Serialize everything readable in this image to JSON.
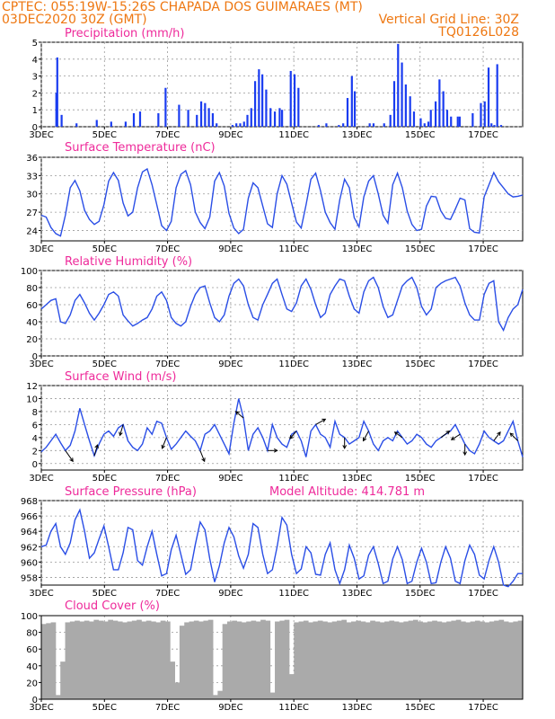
{
  "header": {
    "line1_left": "CPTEC:   055:19W-15:26S   CHAPADA DOS GUIMARAES (MT)",
    "line2_left": "03DEC2020 30Z (GMT)",
    "line2_right": "Vertical Grid Line: 30Z",
    "line3_right": "TQ0126L028"
  },
  "colors": {
    "header": "#ee7711",
    "panel_title": "#ee2a9a",
    "series": "#2a4ee6",
    "precip_bar": "#1a3cf0",
    "cloud_fill": "#aaaaaa",
    "wind_arrow": "#000000"
  },
  "x_axis": {
    "days": [
      "3DEC",
      "5DEC",
      "7DEC",
      "9DEC",
      "11DEC",
      "13DEC",
      "15DEC",
      "17DEC"
    ],
    "range_hours_from_3DEC": [
      0,
      366
    ]
  },
  "chart_data": [
    {
      "type": "bar",
      "name": "precipitation",
      "title": "Precipitation (mm/h)",
      "ylim": [
        0,
        5
      ],
      "yticks": [
        "0",
        "1",
        "2",
        "3",
        "4",
        "5"
      ],
      "values": [
        [
          3.1,
          2.0
        ],
        [
          3.3,
          4.1
        ],
        [
          4.2,
          0.7
        ],
        [
          7.3,
          0.2
        ],
        [
          11.5,
          0.4
        ],
        [
          14.5,
          0.3
        ],
        [
          17.5,
          0.3
        ],
        [
          19.2,
          0.8
        ],
        [
          20.5,
          0.9
        ],
        [
          24.3,
          0.8
        ],
        [
          25.8,
          2.3
        ],
        [
          28.6,
          1.3
        ],
        [
          30.5,
          1.0
        ],
        [
          32.3,
          0.7
        ],
        [
          33.2,
          1.5
        ],
        [
          34,
          1.4
        ],
        [
          34.8,
          1.1
        ],
        [
          35.6,
          0.8
        ],
        [
          36.4,
          0.2
        ],
        [
          39.7,
          0.1
        ],
        [
          40.5,
          0.2
        ],
        [
          41.3,
          0.2
        ],
        [
          42.1,
          0.3
        ],
        [
          42.8,
          0.7
        ],
        [
          43.6,
          1.1
        ],
        [
          44.4,
          2.7
        ],
        [
          45.2,
          3.4
        ],
        [
          45.9,
          3.1
        ],
        [
          46.7,
          2.2
        ],
        [
          47.6,
          1.1
        ],
        [
          48.5,
          0.9
        ],
        [
          49.5,
          1.1
        ],
        [
          50,
          1.0
        ],
        [
          51.8,
          3.3
        ],
        [
          52.6,
          3.1
        ],
        [
          53.4,
          2.3
        ],
        [
          57.6,
          0.1
        ],
        [
          59.2,
          0.2
        ],
        [
          61.8,
          0.1
        ],
        [
          62.7,
          0.2
        ],
        [
          63.6,
          1.7
        ],
        [
          64.5,
          3.0
        ],
        [
          65.1,
          2.1
        ],
        [
          68.2,
          0.2
        ],
        [
          69,
          0.2
        ],
        [
          71.2,
          0.2
        ],
        [
          72.5,
          0.7
        ],
        [
          73.3,
          2.7
        ],
        [
          74.1,
          4.9
        ],
        [
          74.9,
          3.8
        ],
        [
          75.7,
          2.5
        ],
        [
          76.6,
          1.8
        ],
        [
          77.4,
          0.9
        ],
        [
          78.8,
          0.5
        ],
        [
          79.6,
          0.2
        ],
        [
          80.4,
          0.3
        ],
        [
          80.9,
          1.0
        ],
        [
          81.9,
          1.5
        ],
        [
          82.7,
          2.8
        ],
        [
          83.5,
          2.1
        ],
        [
          84.3,
          1.0
        ],
        [
          85.1,
          0.6
        ],
        [
          86.5,
          0.6
        ],
        [
          86.9,
          0.6
        ],
        [
          89.6,
          0.8
        ],
        [
          91.3,
          1.4
        ],
        [
          92.1,
          1.5
        ],
        [
          92.9,
          3.5
        ],
        [
          93.5,
          0.2
        ],
        [
          94.1,
          0.1
        ],
        [
          94.7,
          3.7
        ],
        [
          95.5,
          0.1
        ]
      ]
    },
    {
      "type": "line",
      "name": "surface_temperature",
      "title": "Surface Temperature (nC)",
      "ylim": [
        22.3,
        36
      ],
      "yticks": [
        "24",
        "27",
        "30",
        "33",
        "36"
      ],
      "x": [
        0,
        1,
        2,
        3,
        4,
        5,
        6,
        7,
        8,
        9,
        10,
        11,
        12,
        13,
        14,
        15,
        16,
        17,
        18,
        19,
        20,
        21,
        22,
        23,
        24,
        25,
        26,
        27,
        28,
        29,
        30,
        31,
        32,
        33,
        34,
        35,
        36,
        37,
        38,
        39,
        40,
        41,
        42,
        43,
        44,
        45,
        46,
        47,
        48,
        49,
        50,
        51,
        52,
        53,
        54,
        55,
        56,
        57,
        58,
        59,
        60,
        61,
        62,
        63,
        64,
        65,
        66,
        67,
        68,
        69,
        70,
        71,
        72,
        73,
        74,
        75,
        76,
        77,
        78,
        79,
        80,
        81,
        82,
        83,
        84,
        85,
        86,
        87,
        88,
        89,
        90,
        91,
        92,
        93,
        94,
        95,
        96,
        97,
        98,
        99,
        100
      ],
      "values": [
        26.5,
        26.2,
        24.5,
        23.5,
        23.1,
        26.5,
        31.0,
        32.2,
        30.5,
        27.3,
        25.8,
        25.0,
        25.5,
        28.2,
        32.1,
        33.5,
        32.2,
        28.5,
        26.4,
        27.0,
        31.0,
        33.6,
        34.1,
        31.5,
        28.2,
        24.8,
        24.0,
        25.5,
        31.0,
        33.2,
        33.8,
        31.5,
        27.0,
        25.3,
        24.3,
        26.2,
        32.1,
        33.5,
        31.3,
        26.8,
        24.4,
        23.5,
        24.2,
        29.3,
        31.8,
        31.0,
        28.0,
        25.1,
        24.5,
        30.0,
        33.0,
        31.6,
        28.5,
        25.4,
        24.4,
        28.2,
        32.4,
        33.4,
        30.5,
        27.0,
        25.3,
        24.2,
        29.0,
        32.4,
        31.0,
        26.1,
        24.6,
        29.5,
        32.1,
        33.0,
        30.0,
        26.5,
        25.2,
        31.5,
        33.4,
        31.0,
        27.2,
        25.0,
        24.0,
        24.2,
        28.0,
        29.6,
        29.5,
        27.2,
        26.0,
        25.8,
        27.5,
        29.3,
        29.0,
        24.3,
        23.7,
        23.6,
        29.5,
        31.5,
        33.5,
        32.0,
        31.0,
        30.0,
        29.5,
        29.6,
        29.8
      ]
    },
    {
      "type": "line",
      "name": "relative_humidity",
      "title": "Relative Humidity (%)",
      "ylim": [
        0,
        100
      ],
      "yticks": [
        "0",
        "20",
        "40",
        "60",
        "80",
        "100"
      ],
      "x": [
        0,
        1,
        2,
        3,
        4,
        5,
        6,
        7,
        8,
        9,
        10,
        11,
        12,
        13,
        14,
        15,
        16,
        17,
        18,
        19,
        20,
        21,
        22,
        23,
        24,
        25,
        26,
        27,
        28,
        29,
        30,
        31,
        32,
        33,
        34,
        35,
        36,
        37,
        38,
        39,
        40,
        41,
        42,
        43,
        44,
        45,
        46,
        47,
        48,
        49,
        50,
        51,
        52,
        53,
        54,
        55,
        56,
        57,
        58,
        59,
        60,
        61,
        62,
        63,
        64,
        65,
        66,
        67,
        68,
        69,
        70,
        71,
        72,
        73,
        74,
        75,
        76,
        77,
        78,
        79,
        80,
        81,
        82,
        83,
        84,
        85,
        86,
        87,
        88,
        89,
        90,
        91,
        92,
        93,
        94,
        95,
        96,
        97,
        98,
        99,
        100
      ],
      "values": [
        55,
        60,
        65,
        67,
        40,
        38,
        48,
        65,
        72,
        62,
        50,
        42,
        50,
        60,
        72,
        75,
        70,
        48,
        41,
        35,
        38,
        42,
        45,
        55,
        70,
        75,
        65,
        45,
        38,
        35,
        40,
        58,
        72,
        80,
        82,
        62,
        45,
        40,
        48,
        70,
        85,
        90,
        82,
        60,
        45,
        42,
        60,
        72,
        85,
        90,
        72,
        55,
        52,
        62,
        82,
        90,
        78,
        60,
        45,
        50,
        72,
        82,
        90,
        88,
        70,
        55,
        50,
        75,
        88,
        92,
        80,
        58,
        45,
        48,
        65,
        82,
        88,
        92,
        80,
        58,
        48,
        55,
        80,
        85,
        88,
        90,
        92,
        82,
        62,
        48,
        42,
        42,
        72,
        85,
        88,
        40,
        30,
        45,
        55,
        60,
        78
      ]
    },
    {
      "type": "line",
      "name": "surface_wind",
      "title": "Surface Wind (m/s)",
      "ylim": [
        -1,
        12
      ],
      "yticks": [
        "0",
        "2",
        "4",
        "6",
        "8",
        "10",
        "12"
      ],
      "x": [
        0,
        1,
        2,
        3,
        4,
        5,
        6,
        7,
        8,
        9,
        10,
        11,
        12,
        13,
        14,
        15,
        16,
        17,
        18,
        19,
        20,
        21,
        22,
        23,
        24,
        25,
        26,
        27,
        28,
        29,
        30,
        31,
        32,
        33,
        34,
        35,
        36,
        37,
        38,
        39,
        40,
        41,
        42,
        43,
        44,
        45,
        46,
        47,
        48,
        49,
        50,
        51,
        52,
        53,
        54,
        55,
        56,
        57,
        58,
        59,
        60,
        61,
        62,
        63,
        64,
        65,
        66,
        67,
        68,
        69,
        70,
        71,
        72,
        73,
        74,
        75,
        76,
        77,
        78,
        79,
        80,
        81,
        82,
        83,
        84,
        85,
        86,
        87,
        88,
        89,
        90,
        91,
        92,
        93,
        94,
        95,
        96,
        97,
        98,
        99,
        100
      ],
      "values": [
        1.8,
        2.5,
        3.5,
        4.5,
        3.2,
        2.0,
        2.8,
        5.0,
        8.5,
        6.0,
        3.5,
        1.2,
        3.0,
        4.5,
        5.0,
        4.2,
        5.5,
        6.0,
        3.5,
        2.5,
        2.0,
        3.0,
        5.5,
        4.5,
        6.5,
        6.2,
        4.0,
        2.2,
        3.0,
        4.0,
        5.0,
        4.2,
        3.5,
        2.0,
        4.5,
        5.0,
        6.0,
        4.5,
        3.0,
        1.5,
        6.2,
        10.0,
        7.0,
        2.0,
        4.5,
        5.5,
        4.0,
        2.0,
        6.0,
        4.0,
        3.0,
        2.5,
        4.5,
        5.0,
        3.5,
        1.0,
        5.0,
        6.0,
        4.5,
        4.0,
        2.5,
        6.5,
        4.5,
        4.0,
        3.0,
        3.5,
        4.0,
        6.5,
        5.0,
        3.0,
        2.0,
        3.5,
        4.0,
        3.5,
        5.0,
        4.0,
        3.0,
        3.5,
        4.5,
        4.0,
        3.0,
        2.5,
        3.5,
        4.0,
        4.5,
        5.0,
        6.0,
        4.5,
        3.0,
        2.0,
        1.5,
        3.0,
        5.0,
        4.0,
        3.5,
        3.0,
        3.5,
        5.0,
        6.5,
        3.5,
        1.0
      ],
      "arrows": [
        [
          5,
          0.7,
          1.0
        ],
        [
          11,
          0.3,
          -1.0
        ],
        [
          17,
          -0.3,
          1.0
        ],
        [
          26,
          -0.4,
          1.0
        ],
        [
          33,
          0.4,
          1.0
        ],
        [
          42,
          -0.7,
          -0.6
        ],
        [
          47,
          0.9,
          0.0
        ],
        [
          53,
          -0.6,
          0.7
        ],
        [
          57,
          0.9,
          -0.5
        ],
        [
          63,
          0.0,
          1.0
        ],
        [
          68,
          -0.5,
          0.9
        ],
        [
          75,
          -0.7,
          -0.5
        ],
        [
          83,
          0.8,
          -0.6
        ],
        [
          87,
          -0.8,
          0.5
        ],
        [
          88,
          0.0,
          1.0
        ],
        [
          94,
          0.6,
          -0.8
        ],
        [
          99,
          -0.7,
          -0.7
        ]
      ]
    },
    {
      "type": "line",
      "name": "surface_pressure",
      "title": "Surface Pressure (hPa)",
      "annotation": "Model Altitude:  414.781  m",
      "ylim": [
        957,
        968
      ],
      "yticks": [
        "958",
        "960",
        "962",
        "964",
        "966",
        "968"
      ],
      "x": [
        0,
        1,
        2,
        3,
        4,
        5,
        6,
        7,
        8,
        9,
        10,
        11,
        12,
        13,
        14,
        15,
        16,
        17,
        18,
        19,
        20,
        21,
        22,
        23,
        24,
        25,
        26,
        27,
        28,
        29,
        30,
        31,
        32,
        33,
        34,
        35,
        36,
        37,
        38,
        39,
        40,
        41,
        42,
        43,
        44,
        45,
        46,
        47,
        48,
        49,
        50,
        51,
        52,
        53,
        54,
        55,
        56,
        57,
        58,
        59,
        60,
        61,
        62,
        63,
        64,
        65,
        66,
        67,
        68,
        69,
        70,
        71,
        72,
        73,
        74,
        75,
        76,
        77,
        78,
        79,
        80,
        81,
        82,
        83,
        84,
        85,
        86,
        87,
        88,
        89,
        90,
        91,
        92,
        93,
        94,
        95,
        96,
        97,
        98,
        99,
        100
      ],
      "values": [
        962.0,
        962.2,
        964.0,
        965.0,
        962.0,
        961.0,
        962.5,
        965.5,
        966.8,
        964.0,
        960.5,
        961.2,
        963.0,
        964.7,
        962.0,
        959.0,
        959.0,
        961.2,
        964.5,
        964.2,
        960.2,
        959.6,
        962.0,
        964.0,
        961.0,
        958.2,
        958.5,
        961.6,
        963.5,
        961.0,
        958.4,
        959.0,
        962.3,
        965.2,
        964.2,
        960.4,
        957.4,
        959.5,
        962.5,
        964.5,
        963.3,
        960.8,
        959.2,
        961.0,
        965.0,
        964.5,
        961.0,
        958.5,
        959.0,
        962.0,
        965.8,
        964.8,
        961.0,
        958.5,
        959.1,
        962.0,
        961.2,
        958.4,
        958.3,
        961.0,
        962.5,
        959.0,
        957.2,
        959.0,
        962.2,
        960.5,
        957.8,
        958.2,
        960.9,
        962.0,
        959.8,
        957.2,
        957.5,
        960.4,
        962.0,
        960.3,
        957.2,
        957.5,
        960.0,
        961.8,
        960.0,
        957.2,
        957.3,
        960.0,
        962.0,
        960.5,
        957.5,
        957.2,
        960.2,
        962.2,
        961.0,
        958.3,
        957.8,
        960.2,
        962.0,
        960.0,
        957.0,
        956.8,
        957.5,
        958.5,
        958.5
      ]
    },
    {
      "type": "area",
      "name": "cloud_cover",
      "title": "Cloud Cover (%)",
      "ylim": [
        0,
        100
      ],
      "yticks": [
        "0",
        "20",
        "40",
        "60",
        "80",
        "100"
      ],
      "values": [
        90,
        91,
        92,
        5,
        45,
        92,
        93,
        94,
        93,
        94,
        93,
        95,
        94,
        93,
        95,
        94,
        93,
        92,
        93,
        94,
        95,
        93,
        94,
        93,
        92,
        94,
        93,
        45,
        20,
        88,
        92,
        93,
        94,
        93,
        94,
        95,
        5,
        10,
        90,
        93,
        94,
        93,
        92,
        93,
        94,
        93,
        95,
        94,
        8,
        93,
        94,
        95,
        30,
        92,
        93,
        94,
        92,
        93,
        94,
        93,
        92,
        93,
        94,
        95,
        92,
        93,
        94,
        93,
        92,
        94,
        93,
        92,
        93,
        94,
        93,
        92,
        93,
        94,
        95,
        93,
        92,
        93,
        94,
        93,
        92,
        93,
        94,
        95,
        93,
        92,
        93,
        94,
        93,
        92,
        93,
        94,
        95,
        93,
        92,
        93,
        94
      ]
    }
  ]
}
